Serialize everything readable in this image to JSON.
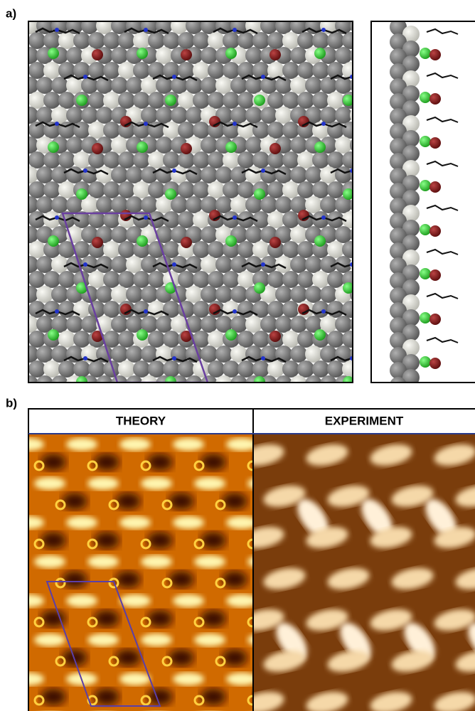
{
  "panel_a": {
    "label": "a)"
  },
  "panel_b": {
    "label": "b)",
    "headers": [
      "THEORY",
      "EXPERIMENT"
    ]
  }
}
